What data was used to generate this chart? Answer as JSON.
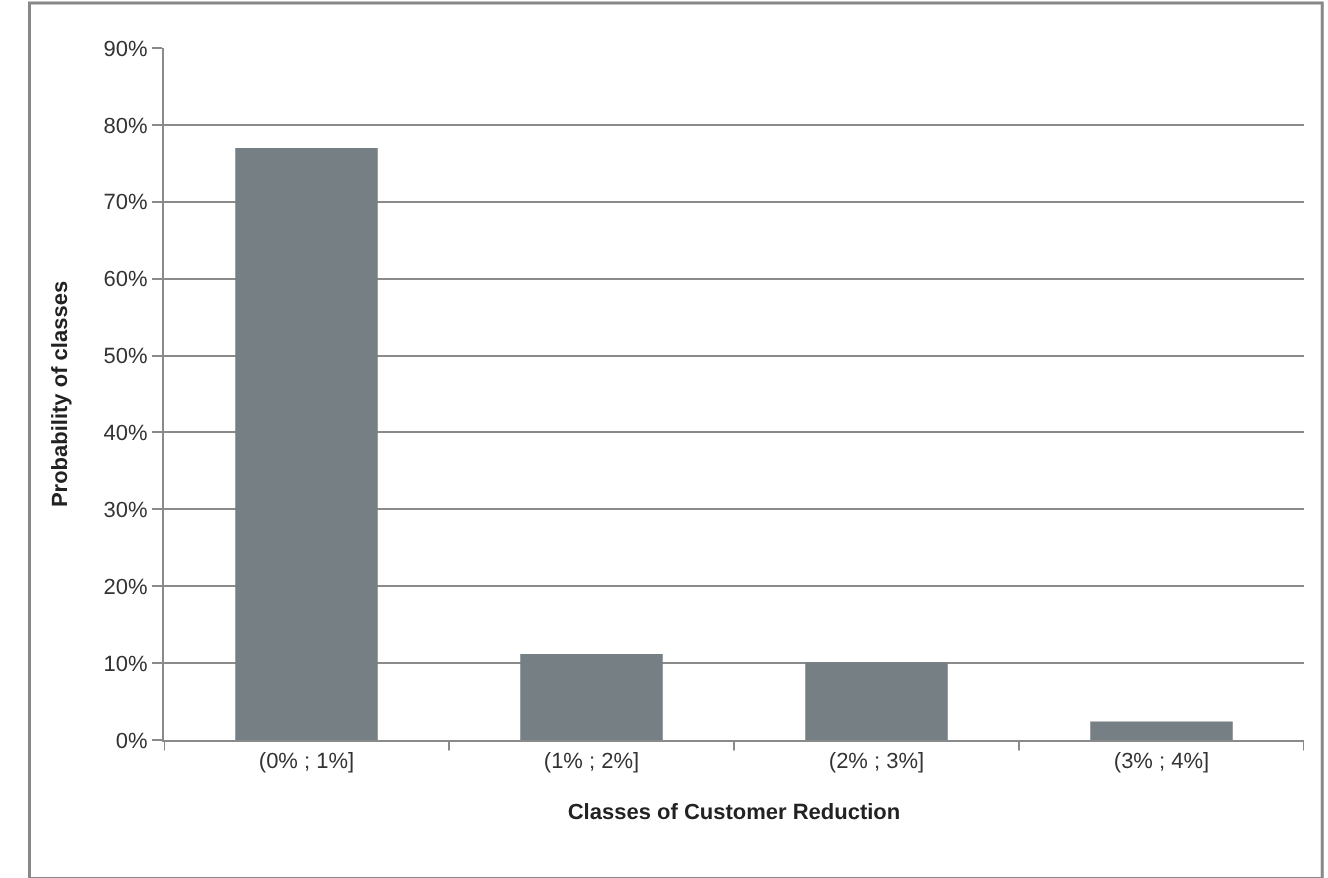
{
  "chart_data": {
    "type": "bar",
    "xlabel": "Classes of Customer Reduction",
    "ylabel": "Probability of classes",
    "categories": [
      "(0% ; 1%]",
      "(1% ; 2%]",
      "(2% ; 3%]",
      "(3% ; 4%]"
    ],
    "values": [
      77,
      11.2,
      10.1,
      2.4
    ],
    "color": "#767f84",
    "ylim": [
      0,
      90
    ],
    "yticks": [
      {
        "value": 0,
        "label": "0%"
      },
      {
        "value": 10,
        "label": "10%"
      },
      {
        "value": 20,
        "label": "20%"
      },
      {
        "value": 30,
        "label": "30%"
      },
      {
        "value": 40,
        "label": "40%"
      },
      {
        "value": 50,
        "label": "50%"
      },
      {
        "value": 60,
        "label": "60%"
      },
      {
        "value": 70,
        "label": "70%"
      },
      {
        "value": 80,
        "label": "80%"
      },
      {
        "value": 90,
        "label": "90%"
      }
    ],
    "grid": "y",
    "legend": false
  }
}
